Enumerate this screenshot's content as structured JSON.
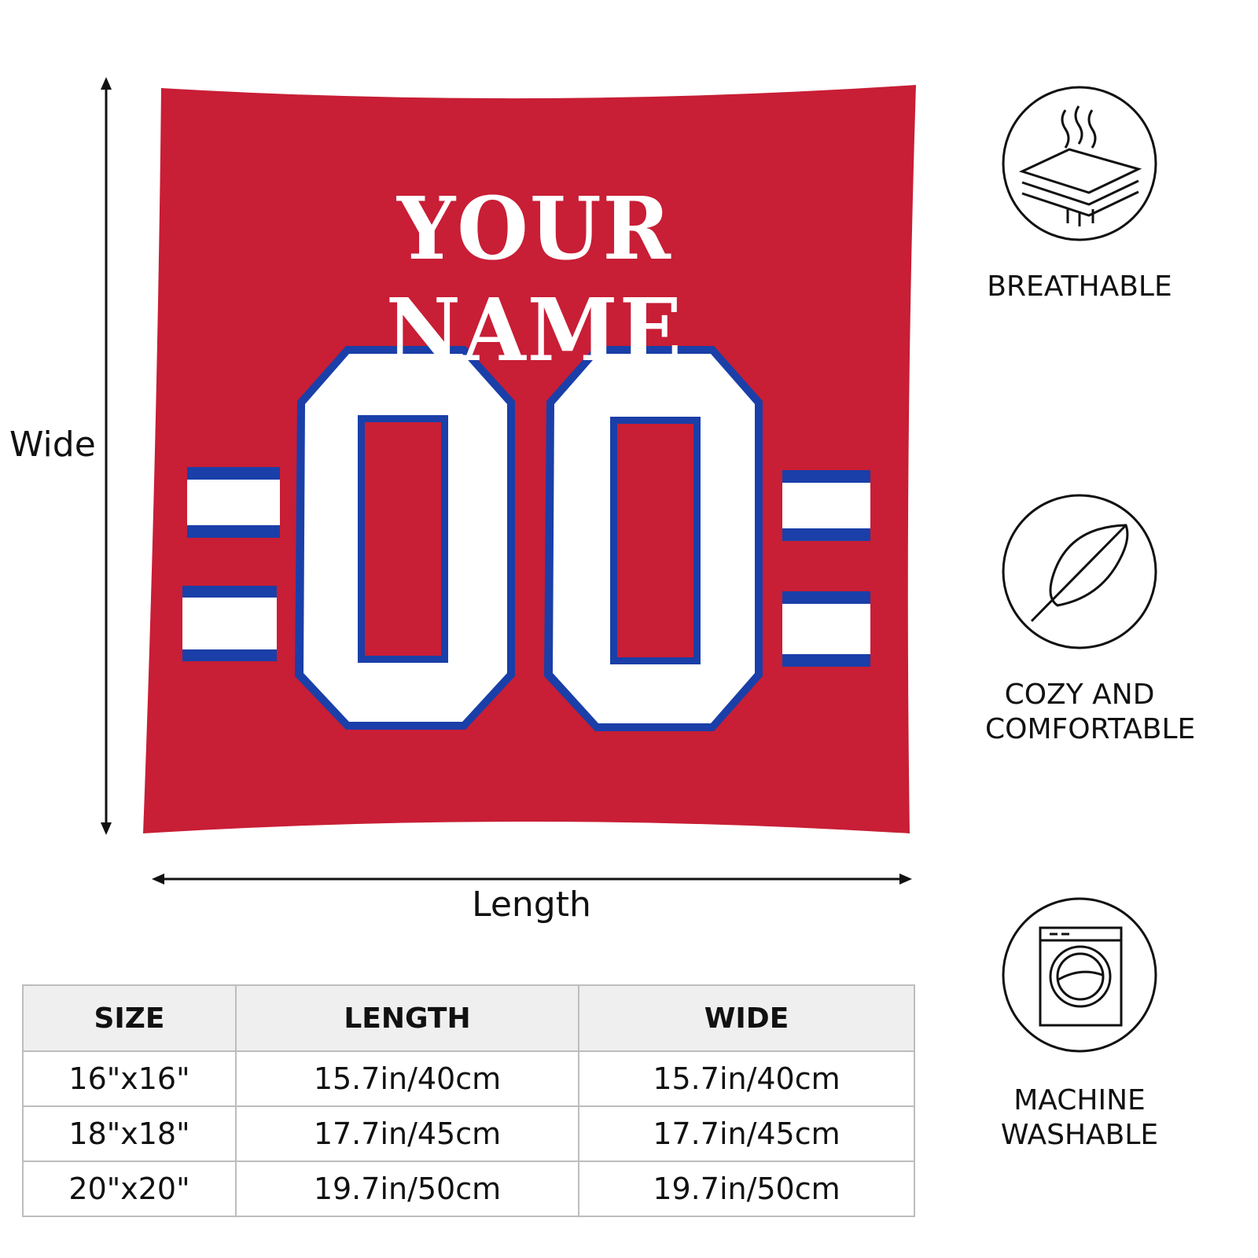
{
  "pillow": {
    "name_text": "YOUR NAME",
    "number_text": "00",
    "colors": {
      "body": "#c81e36",
      "stripe_blue": "#1a3fa8",
      "white": "#ffffff"
    }
  },
  "dimensions": {
    "vertical_label": "Wide",
    "horizontal_label": "Length"
  },
  "features": [
    {
      "icon": "breathable-layers-icon",
      "label": "BREATHABLE"
    },
    {
      "icon": "feather-icon",
      "label": "COZY AND COMFORTABLE"
    },
    {
      "icon": "washing-machine-icon",
      "label": "MACHINE WASHABLE"
    }
  ],
  "size_table": {
    "headers": [
      "SIZE",
      "LENGTH",
      "WIDE"
    ],
    "rows": [
      [
        "16\"x16\"",
        "15.7in/40cm",
        "15.7in/40cm"
      ],
      [
        "18\"x18\"",
        "17.7in/45cm",
        "17.7in/45cm"
      ],
      [
        "20\"x20\"",
        "19.7in/50cm",
        "19.7in/50cm"
      ]
    ]
  }
}
